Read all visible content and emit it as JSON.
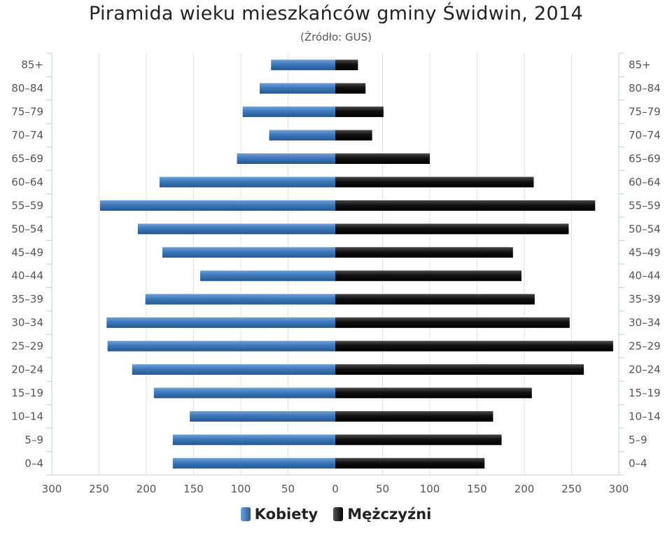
{
  "chart_data": {
    "type": "bar",
    "orientation": "horizontal",
    "title": "Piramida wieku mieszkańców gminy Świdwin, 2014",
    "subtitle": "(Źródło: GUS)",
    "categories": [
      "85+",
      "80-84",
      "75-79",
      "70-74",
      "65-69",
      "60-64",
      "55-59",
      "50-54",
      "45-49",
      "40-44",
      "35-39",
      "30-34",
      "25-29",
      "20-24",
      "15-19",
      "10-14",
      "5-9",
      "0-4"
    ],
    "series": [
      {
        "name": "Kobiety",
        "color": "#3a74b6",
        "values": [
          68,
          80,
          98,
          70,
          104,
          186,
          249,
          209,
          183,
          143,
          201,
          242,
          241,
          215,
          192,
          154,
          172,
          172
        ]
      },
      {
        "name": "Mężczyźni",
        "color": "#111111",
        "values": [
          24,
          32,
          51,
          39,
          100,
          210,
          275,
          247,
          188,
          197,
          211,
          248,
          294,
          263,
          208,
          167,
          176,
          158
        ]
      }
    ],
    "xlim": [
      -300,
      300
    ],
    "x_ticks": [
      300,
      250,
      200,
      150,
      100,
      50,
      0,
      50,
      100,
      150,
      200,
      250,
      300
    ],
    "grid": true,
    "legend_position": "bottom"
  }
}
